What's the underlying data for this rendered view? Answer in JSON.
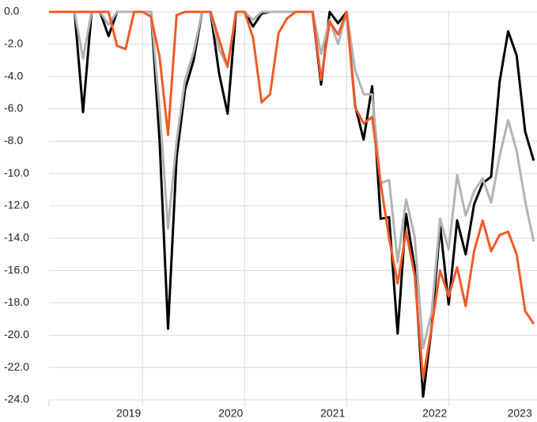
{
  "chart_data": {
    "type": "line",
    "categories": [
      null,
      null,
      null,
      null,
      null,
      null,
      null,
      null,
      null,
      null,
      null,
      "2019",
      null,
      null,
      null,
      null,
      null,
      null,
      null,
      null,
      null,
      null,
      null,
      "2020",
      null,
      null,
      null,
      null,
      null,
      null,
      null,
      null,
      null,
      null,
      null,
      "2021",
      null,
      null,
      null,
      null,
      null,
      null,
      null,
      null,
      null,
      null,
      null,
      "2022",
      null,
      null,
      null,
      null,
      null,
      null,
      null,
      null,
      null,
      "2023"
    ],
    "series": [
      {
        "color": "#000000",
        "values": [
          0,
          0,
          0,
          0,
          -6.2,
          0,
          0,
          -1.5,
          0,
          0,
          0,
          0,
          0,
          -8,
          -19.6,
          -9,
          -4.8,
          -3,
          0,
          0,
          -3.8,
          -6.3,
          0,
          0,
          -0.9,
          -0.1,
          0,
          0,
          0,
          0,
          0,
          0,
          -4.5,
          0,
          -0.7,
          0,
          -5.8,
          -7.9,
          -4.6,
          -12.8,
          -12.7,
          -19.9,
          -12.5,
          -15.8,
          -23.8,
          -19.5,
          -13.2,
          -18.1,
          -12.9,
          -15,
          -11.9,
          -10.6,
          -10.2,
          -4.3,
          -1.2,
          -2.7,
          -7.4,
          -9.2
        ]
      },
      {
        "color": "#b3b3b3",
        "values": [
          0,
          0,
          0,
          0,
          -2.9,
          0,
          0,
          -0.8,
          0,
          0,
          0,
          0,
          0,
          -6,
          -13.4,
          -8,
          -4.2,
          -2.5,
          0,
          0,
          -2.3,
          -3.4,
          0,
          0,
          -0.5,
          0,
          0,
          0,
          0,
          0,
          0,
          0,
          -2.6,
          -0.5,
          -2,
          0,
          -3.6,
          -5.1,
          -5.1,
          -10.6,
          -10.4,
          -15.5,
          -11.6,
          -13.9,
          -20.8,
          -18.6,
          -12.8,
          -14.7,
          -10.1,
          -12.6,
          -11.1,
          -10.3,
          -11.8,
          -8.9,
          -6.7,
          -8.6,
          -11.7,
          -14.2
        ]
      },
      {
        "color": "#f05a28",
        "values": [
          0,
          0,
          0,
          0,
          0,
          0,
          0,
          0,
          -2.1,
          -2.3,
          0,
          0,
          -0.3,
          -2.8,
          -7.6,
          -0.2,
          0,
          0,
          0,
          0,
          -1.7,
          -3.4,
          0,
          0,
          -1.6,
          -5.6,
          -5.1,
          -1.3,
          -0.4,
          0,
          0,
          0,
          -4.2,
          -0.6,
          -1.4,
          0,
          -5.9,
          -6.9,
          -6.5,
          -10.6,
          -14,
          -16.8,
          -13.6,
          -16.3,
          -22.7,
          -19.5,
          -16,
          -17.6,
          -15.8,
          -18.2,
          -14.8,
          -12.9,
          -14.8,
          -13.8,
          -13.6,
          -15,
          -18.5,
          -19.3
        ]
      }
    ],
    "ylim": [
      -24,
      0
    ],
    "yticks": [
      {
        "value": 0,
        "label": "0.0"
      },
      {
        "value": -2,
        "label": "-2.0"
      },
      {
        "value": -4,
        "label": "-4.0"
      },
      {
        "value": -6,
        "label": "-6.0"
      },
      {
        "value": -8,
        "label": "-8.0"
      },
      {
        "value": -10,
        "label": "-10.0"
      },
      {
        "value": -12,
        "label": "-12.0"
      },
      {
        "value": -14,
        "label": "-14.0"
      },
      {
        "value": -16,
        "label": "-16.0"
      },
      {
        "value": -18,
        "label": "-18.0"
      },
      {
        "value": -20,
        "label": "-20.0"
      },
      {
        "value": -22,
        "label": "-22.0"
      },
      {
        "value": -24,
        "label": "-24.0"
      }
    ],
    "grid": true
  }
}
